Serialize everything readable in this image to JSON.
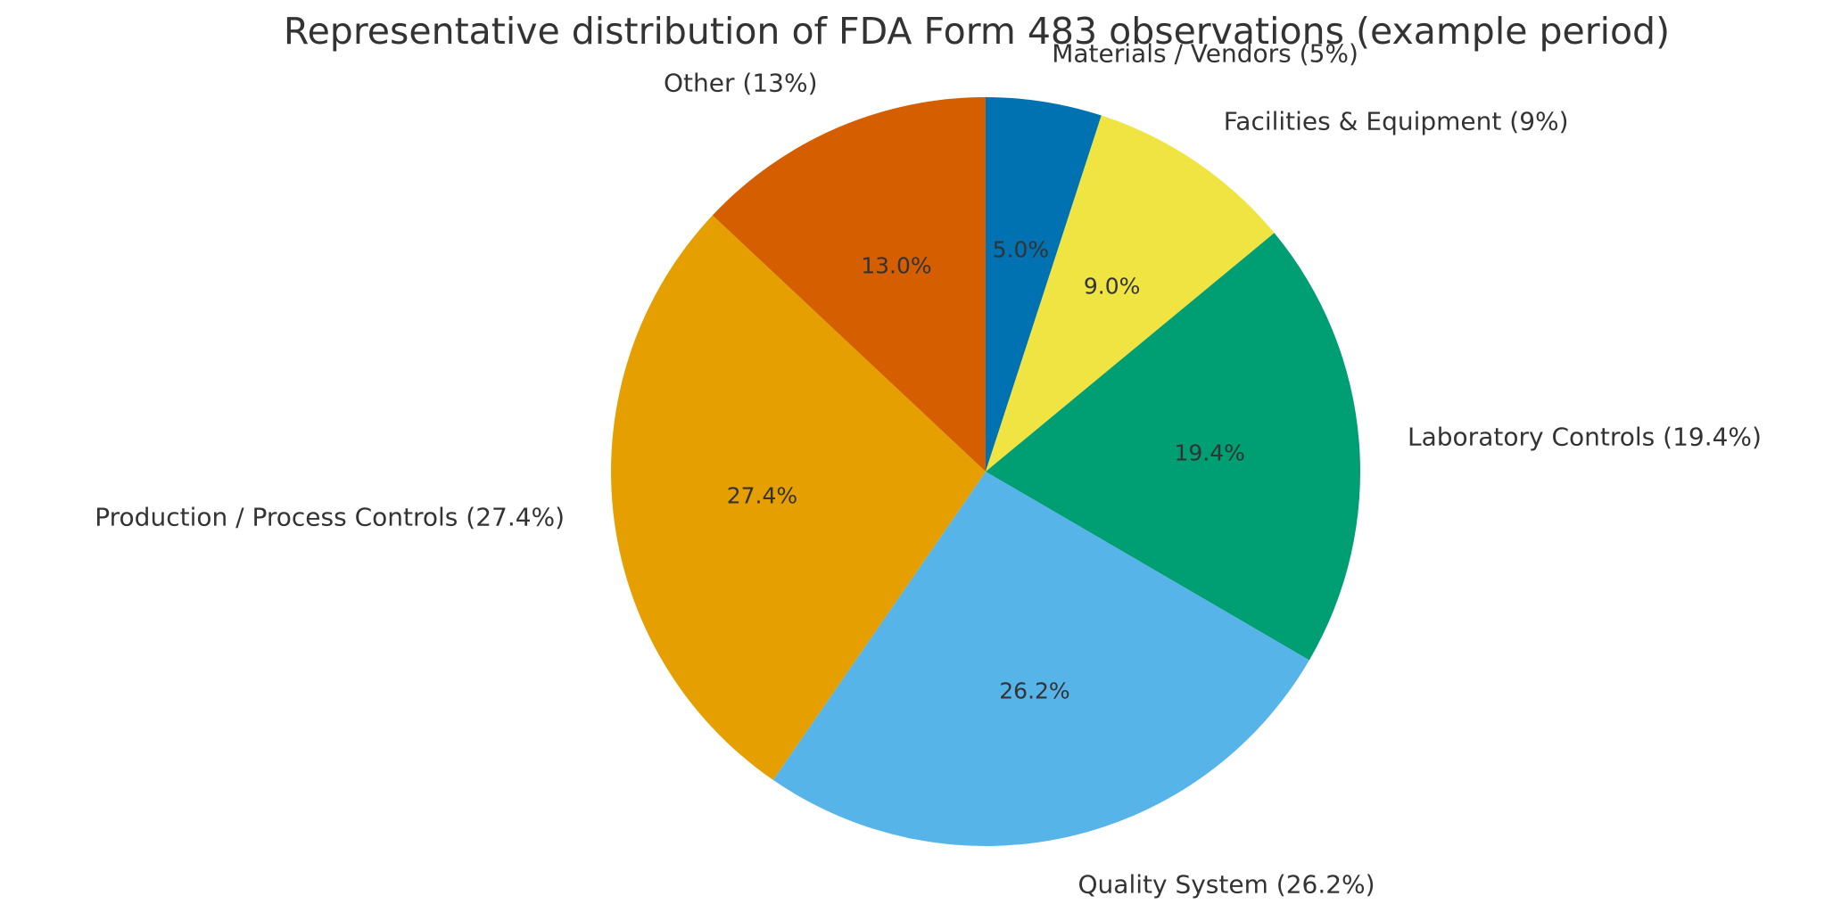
{
  "figure": {
    "background": "#ffffff",
    "text_color": "#333333"
  },
  "chart_data": {
    "type": "pie",
    "title": "Representative distribution of FDA Form 483 observations (example period)",
    "legend": "none",
    "start_angle_deg": 90,
    "direction": "clockwise",
    "label_distance_ratio": 1.13,
    "pct_distance_ratio": 0.6,
    "slices": [
      {
        "label": "Materials / Vendors (5%)",
        "category": "Materials / Vendors",
        "value": 5.0,
        "pct_label": "5.0%",
        "color": "#0072B2"
      },
      {
        "label": "Facilities & Equipment (9%)",
        "category": "Facilities & Equipment",
        "value": 9.0,
        "pct_label": "9.0%",
        "color": "#F0E442"
      },
      {
        "label": "Laboratory Controls (19.4%)",
        "category": "Laboratory Controls",
        "value": 19.4,
        "pct_label": "19.4%",
        "color": "#009E73"
      },
      {
        "label": "Quality System (26.2%)",
        "category": "Quality System",
        "value": 26.2,
        "pct_label": "26.2%",
        "color": "#56B4E9"
      },
      {
        "label": "Production / Process Controls (27.4%)",
        "category": "Production / Process Controls",
        "value": 27.4,
        "pct_label": "27.4%",
        "color": "#E69F00"
      },
      {
        "label": "Other (13%)",
        "category": "Other",
        "value": 13.0,
        "pct_label": "13.0%",
        "color": "#D55E00"
      }
    ]
  }
}
